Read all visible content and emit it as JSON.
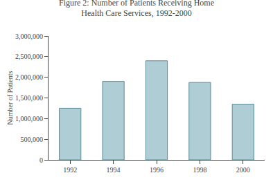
{
  "chart_data": {
    "type": "bar",
    "title": "Figure 2: Number of Patients Receiving Home\nHealth Care Services, 1992-2000",
    "categories": [
      "1992",
      "1994",
      "1996",
      "1998",
      "2000"
    ],
    "values": [
      1250000,
      1900000,
      2400000,
      1875000,
      1350000
    ],
    "color": "#aecdd4",
    "ylabel": "Number of Patients",
    "ylim": [
      0,
      3000000
    ],
    "yticks": [
      0,
      {
        "value": 500000,
        "label": "500,000"
      },
      {
        "value": 1000000,
        "label": "1,000,000"
      },
      {
        "value": 1500000,
        "label": "1,500,000"
      },
      {
        "value": 2000000,
        "label": "2,000,000"
      },
      {
        "value": 2500000,
        "label": "2,500,000"
      },
      {
        "value": 3000000,
        "label": "3,000,000"
      }
    ],
    "grid": false
  }
}
